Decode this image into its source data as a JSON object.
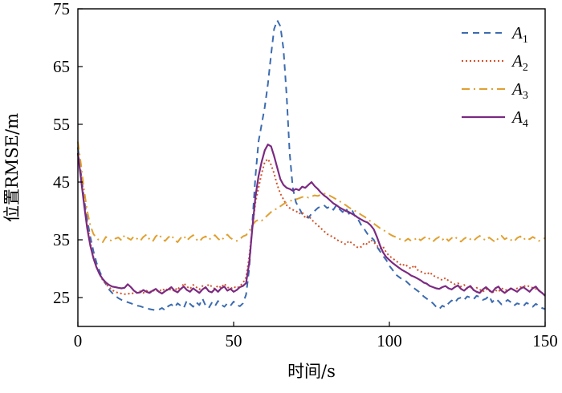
{
  "chart_data": {
    "type": "line",
    "xlabel": "时间/s",
    "ylabel": "位置RMSE/m",
    "xlim": [
      0,
      150
    ],
    "ylim": [
      20,
      75
    ],
    "xticks": [
      0,
      50,
      100,
      150
    ],
    "yticks": [
      25,
      35,
      45,
      55,
      65,
      75
    ],
    "grid": false,
    "legend_position": "top-right",
    "x": [
      0,
      1,
      2,
      3,
      4,
      5,
      6,
      7,
      8,
      9,
      10,
      11,
      12,
      13,
      14,
      15,
      16,
      17,
      18,
      19,
      20,
      21,
      22,
      23,
      24,
      25,
      26,
      27,
      28,
      29,
      30,
      31,
      32,
      33,
      34,
      35,
      36,
      37,
      38,
      39,
      40,
      41,
      42,
      43,
      44,
      45,
      46,
      47,
      48,
      49,
      50,
      51,
      52,
      53,
      54,
      55,
      56,
      57,
      58,
      59,
      60,
      61,
      62,
      63,
      64,
      65,
      66,
      67,
      68,
      69,
      70,
      71,
      72,
      73,
      74,
      75,
      76,
      77,
      78,
      79,
      80,
      81,
      82,
      83,
      84,
      85,
      86,
      87,
      88,
      89,
      90,
      91,
      92,
      93,
      94,
      95,
      96,
      97,
      98,
      99,
      100,
      101,
      102,
      103,
      104,
      105,
      106,
      107,
      108,
      109,
      110,
      111,
      112,
      113,
      114,
      115,
      116,
      117,
      118,
      119,
      120,
      121,
      122,
      123,
      124,
      125,
      126,
      127,
      128,
      129,
      130,
      131,
      132,
      133,
      134,
      135,
      136,
      137,
      138,
      139,
      140,
      141,
      142,
      143,
      144,
      145,
      146,
      147,
      148,
      149,
      150
    ],
    "series": [
      {
        "name": "A",
        "name_sub": "1",
        "color": "#3b6bb0",
        "dash": "dashed",
        "values": [
          51.0,
          46.5,
          42.0,
          38.5,
          35.5,
          33.0,
          31.0,
          29.5,
          28.3,
          27.3,
          26.4,
          25.8,
          25.3,
          24.9,
          24.6,
          24.4,
          24.2,
          24.0,
          23.8,
          23.6,
          23.5,
          23.3,
          23.2,
          23.0,
          22.9,
          22.8,
          22.9,
          23.2,
          22.8,
          23.5,
          23.8,
          23.3,
          24.0,
          23.6,
          23.2,
          24.5,
          23.9,
          23.4,
          24.2,
          23.7,
          24.8,
          23.6,
          23.2,
          24.1,
          23.5,
          24.4,
          23.8,
          23.4,
          24.0,
          23.6,
          24.3,
          23.7,
          23.5,
          24.0,
          25.5,
          30.0,
          38.0,
          46.0,
          52.0,
          55.0,
          58.0,
          62.0,
          67.0,
          71.5,
          73.0,
          72.0,
          68.0,
          60.0,
          50.0,
          44.0,
          41.5,
          40.5,
          39.5,
          39.0,
          38.8,
          39.5,
          40.0,
          40.5,
          40.8,
          41.0,
          40.5,
          40.8,
          40.2,
          41.0,
          40.3,
          39.8,
          40.5,
          39.5,
          40.2,
          39.0,
          38.5,
          37.5,
          36.8,
          36.0,
          35.5,
          35.0,
          33.8,
          33.0,
          32.2,
          31.5,
          30.5,
          29.8,
          29.0,
          28.6,
          28.2,
          28.0,
          27.5,
          27.0,
          26.6,
          26.2,
          25.8,
          25.2,
          24.8,
          24.4,
          24.0,
          23.4,
          23.0,
          23.6,
          23.3,
          24.0,
          24.5,
          24.1,
          24.8,
          25.0,
          24.6,
          25.2,
          25.0,
          24.7,
          25.3,
          25.1,
          24.6,
          24.8,
          25.3,
          24.2,
          24.8,
          24.4,
          23.8,
          24.2,
          24.6,
          24.2,
          23.6,
          24.0,
          23.8,
          23.5,
          24.1,
          23.8,
          23.4,
          23.9,
          23.6,
          23.2,
          23.0
        ]
      },
      {
        "name": "A",
        "name_sub": "2",
        "color": "#d2522a",
        "dash": "dotted",
        "values": [
          50.0,
          46.0,
          41.5,
          37.8,
          34.5,
          32.0,
          30.3,
          29.0,
          28.0,
          27.3,
          26.8,
          26.3,
          26.0,
          25.8,
          25.7,
          25.6,
          25.6,
          25.8,
          25.7,
          25.9,
          26.1,
          25.8,
          26.2,
          25.9,
          26.3,
          26.0,
          26.4,
          26.1,
          26.6,
          26.2,
          26.5,
          26.1,
          26.8,
          26.3,
          27.5,
          26.9,
          26.5,
          27.2,
          26.8,
          26.4,
          27.0,
          26.6,
          27.3,
          26.9,
          26.5,
          27.1,
          26.7,
          27.4,
          26.8,
          26.5,
          26.9,
          26.6,
          27.0,
          27.5,
          28.5,
          32.0,
          37.0,
          41.5,
          44.0,
          46.5,
          48.5,
          49.0,
          48.0,
          46.5,
          44.5,
          43.0,
          42.0,
          41.0,
          40.5,
          40.2,
          40.0,
          39.5,
          39.8,
          38.8,
          39.2,
          38.5,
          38.0,
          37.5,
          37.0,
          36.5,
          36.0,
          35.7,
          35.5,
          35.0,
          34.8,
          34.5,
          34.2,
          34.8,
          34.4,
          34.0,
          33.6,
          33.8,
          34.5,
          34.2,
          35.0,
          34.6,
          34.0,
          33.5,
          33.8,
          32.8,
          32.2,
          31.8,
          31.4,
          31.0,
          30.5,
          30.8,
          30.3,
          30.0,
          30.6,
          29.8,
          29.5,
          29.3,
          29.0,
          29.4,
          28.8,
          28.6,
          28.3,
          28.0,
          28.4,
          27.9,
          27.6,
          27.3,
          27.5,
          26.9,
          27.2,
          26.6,
          26.8,
          26.3,
          26.7,
          26.4,
          26.0,
          26.5,
          26.2,
          25.8,
          26.3,
          26.0,
          26.6,
          26.4,
          26.2,
          26.5,
          26.3,
          26.6,
          26.8,
          26.9,
          27.1,
          26.9,
          26.7,
          26.5,
          26.3,
          25.8,
          25.5
        ]
      },
      {
        "name": "A",
        "name_sub": "3",
        "color": "#e0a030",
        "dash": "dashdot",
        "values": [
          52.0,
          48.0,
          43.5,
          40.0,
          37.5,
          36.0,
          35.3,
          34.8,
          34.6,
          35.5,
          35.0,
          34.8,
          35.2,
          35.4,
          34.9,
          35.8,
          35.3,
          35.0,
          35.6,
          35.2,
          34.8,
          35.5,
          35.9,
          35.1,
          34.7,
          35.6,
          36.0,
          35.2,
          34.8,
          35.4,
          35.8,
          35.0,
          34.6,
          35.3,
          35.7,
          34.9,
          35.4,
          35.8,
          35.1,
          34.7,
          35.3,
          35.6,
          35.0,
          35.4,
          35.8,
          35.2,
          34.8,
          35.5,
          35.9,
          35.3,
          35.0,
          34.8,
          35.1,
          35.6,
          35.8,
          36.5,
          37.5,
          38.2,
          38.5,
          38.3,
          38.8,
          39.3,
          39.8,
          40.2,
          40.4,
          40.8,
          41.2,
          41.5,
          41.7,
          41.9,
          42.0,
          42.2,
          42.4,
          42.5,
          42.3,
          42.5,
          42.7,
          42.6,
          42.8,
          43.0,
          42.9,
          42.6,
          42.3,
          42.0,
          41.7,
          41.3,
          41.0,
          40.6,
          40.3,
          40.0,
          39.7,
          39.3,
          39.0,
          38.6,
          38.2,
          37.8,
          37.4,
          37.0,
          36.7,
          36.4,
          36.0,
          35.7,
          35.5,
          35.2,
          35.0,
          34.8,
          35.2,
          34.8,
          35.0,
          35.4,
          34.9,
          35.3,
          35.6,
          35.1,
          34.7,
          35.2,
          35.5,
          35.0,
          35.4,
          34.8,
          35.3,
          35.6,
          35.0,
          34.7,
          35.2,
          35.5,
          35.1,
          34.8,
          35.3,
          35.7,
          35.2,
          34.9,
          35.4,
          35.0,
          34.6,
          35.3,
          35.7,
          35.1,
          35.4,
          35.0,
          34.7,
          35.3,
          35.6,
          35.0,
          35.4,
          35.1,
          35.5,
          35.2,
          34.8,
          35.1,
          35.3
        ]
      },
      {
        "name": "A",
        "name_sub": "4",
        "color": "#7b2a82",
        "dash": "solid",
        "values": [
          50.0,
          45.5,
          41.0,
          37.0,
          34.0,
          31.8,
          30.2,
          29.0,
          28.2,
          27.6,
          27.2,
          26.9,
          26.8,
          26.7,
          26.6,
          26.7,
          27.3,
          26.8,
          26.2,
          25.8,
          25.9,
          26.3,
          26.0,
          25.8,
          26.2,
          26.5,
          26.0,
          25.7,
          26.1,
          26.4,
          26.8,
          26.2,
          25.9,
          26.5,
          26.9,
          26.3,
          26.0,
          26.6,
          26.2,
          25.8,
          26.4,
          26.8,
          26.1,
          25.9,
          26.5,
          26.0,
          26.6,
          26.9,
          26.2,
          26.5,
          26.0,
          26.3,
          26.8,
          27.0,
          27.5,
          31.0,
          37.0,
          42.5,
          46.0,
          48.5,
          50.5,
          51.5,
          51.2,
          49.5,
          47.5,
          45.5,
          44.5,
          44.0,
          43.8,
          43.5,
          43.8,
          43.6,
          44.2,
          44.0,
          44.5,
          45.0,
          44.3,
          43.8,
          43.2,
          42.7,
          42.3,
          41.8,
          41.3,
          41.0,
          40.6,
          40.3,
          40.0,
          39.8,
          39.5,
          39.2,
          38.8,
          38.5,
          38.2,
          38.0,
          37.5,
          36.8,
          35.5,
          34.0,
          32.8,
          32.0,
          31.5,
          31.0,
          30.6,
          30.2,
          29.8,
          29.5,
          29.2,
          28.8,
          28.6,
          28.3,
          28.0,
          27.6,
          27.4,
          27.0,
          26.8,
          26.6,
          26.5,
          26.8,
          27.0,
          26.6,
          26.4,
          26.8,
          27.1,
          26.5,
          26.2,
          26.7,
          27.0,
          26.3,
          26.0,
          25.8,
          26.4,
          26.8,
          26.3,
          25.9,
          26.6,
          26.9,
          26.2,
          25.8,
          26.2,
          26.6,
          26.3,
          26.0,
          26.5,
          26.8,
          26.4,
          26.0,
          26.6,
          26.9,
          26.2,
          25.8,
          25.3
        ]
      }
    ]
  }
}
